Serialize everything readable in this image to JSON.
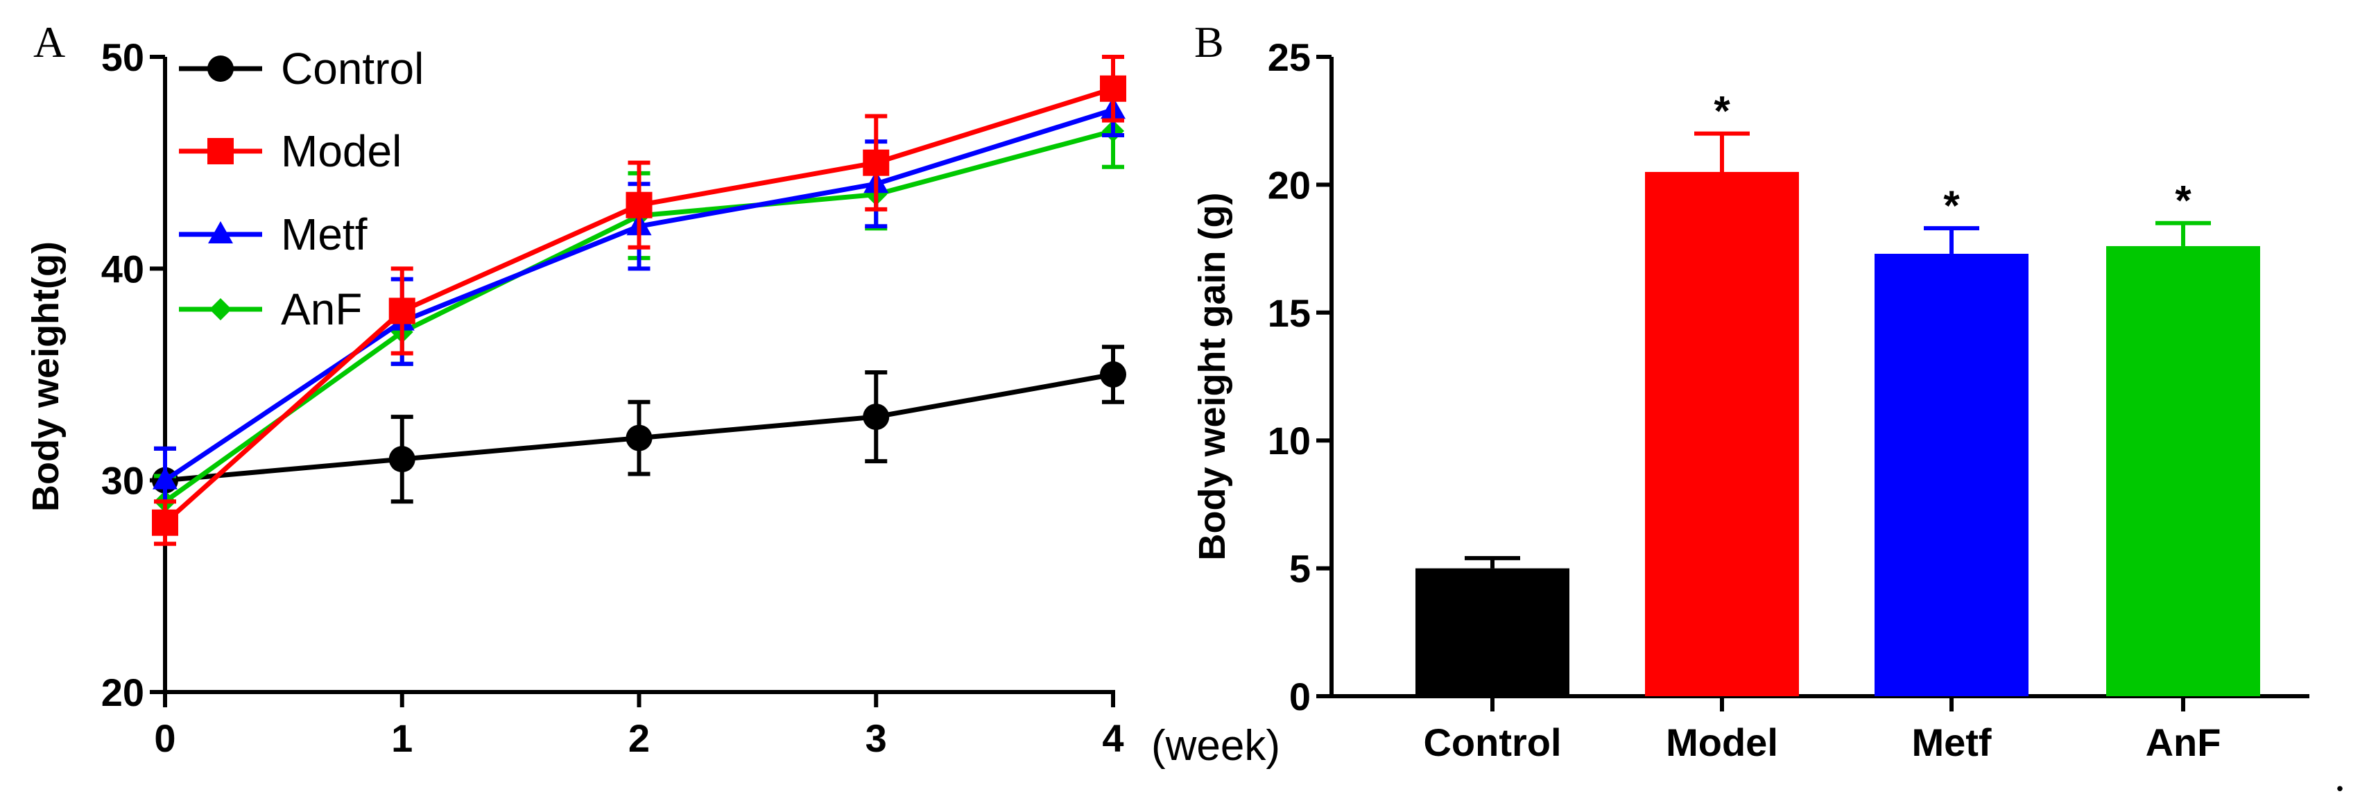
{
  "chart_data": [
    {
      "panel": "A",
      "type": "line",
      "xlabel": "",
      "x_unit_label": "(week)",
      "ylabel": "Body weight(g)",
      "x": [
        0,
        1,
        2,
        3,
        4
      ],
      "xlim": [
        0,
        4
      ],
      "ylim": [
        20,
        50
      ],
      "yticks": [
        20,
        30,
        40,
        50
      ],
      "xticks": [
        0,
        1,
        2,
        3,
        4
      ],
      "grid": false,
      "legend_position": "top-left",
      "series": [
        {
          "name": "Control",
          "color": "#000000",
          "marker": "circle",
          "values": [
            30,
            31,
            32,
            33,
            35
          ],
          "errors": [
            1.5,
            2.0,
            1.7,
            2.1,
            1.3
          ]
        },
        {
          "name": "Model",
          "color": "#ff0000",
          "marker": "square",
          "values": [
            28,
            38,
            43,
            45,
            48.5
          ],
          "errors": [
            1.0,
            2.0,
            2.0,
            2.2,
            1.5
          ]
        },
        {
          "name": "Metf",
          "color": "#0000ff",
          "marker": "triangle",
          "values": [
            30,
            37.5,
            42,
            44,
            47.5
          ],
          "errors": [
            1.5,
            2.0,
            2.0,
            2.0,
            1.2
          ]
        },
        {
          "name": "AnF",
          "color": "#00c800",
          "marker": "diamond",
          "values": [
            29,
            37,
            42.5,
            43.5,
            46.5
          ],
          "errors": [
            1.2,
            1.5,
            2.0,
            1.6,
            1.7
          ]
        }
      ]
    },
    {
      "panel": "B",
      "type": "bar",
      "xlabel": "",
      "ylabel": "Body weight gain (g)",
      "categories": [
        "Control",
        "Model",
        "Metf",
        "AnF"
      ],
      "values": [
        5.0,
        20.5,
        17.3,
        17.6
      ],
      "errors": [
        0.4,
        1.5,
        1.0,
        0.9
      ],
      "colors": [
        "#000000",
        "#ff0000",
        "#0000ff",
        "#00c800"
      ],
      "significance": [
        "",
        "*",
        "*",
        "*"
      ],
      "ylim": [
        0,
        25
      ],
      "yticks": [
        0,
        5,
        10,
        15,
        20,
        25
      ],
      "grid": false
    }
  ],
  "trailing_mark": "."
}
